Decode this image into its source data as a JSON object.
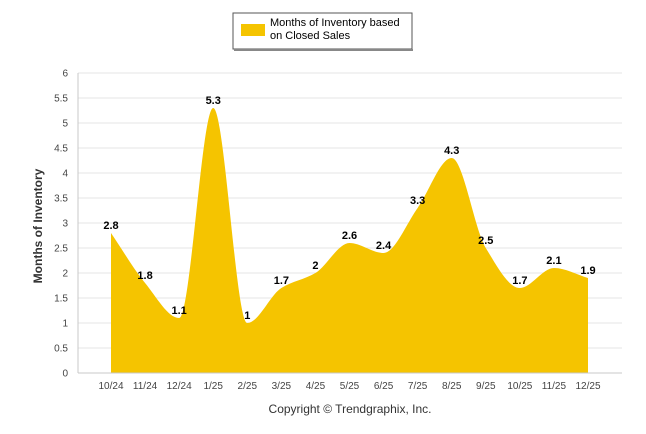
{
  "chart_data": {
    "type": "area",
    "categories": [
      "10/24",
      "11/24",
      "12/24",
      "1/25",
      "2/25",
      "3/25",
      "4/25",
      "5/25",
      "6/25",
      "7/25",
      "8/25",
      "9/25",
      "10/25",
      "11/25",
      "12/25"
    ],
    "series": [
      {
        "name": "Months of Inventory based on Closed Sales",
        "legend_lines": [
          "Months of Inventory based",
          "on Closed Sales"
        ],
        "values": [
          2.8,
          1.8,
          1.1,
          5.3,
          1,
          1.7,
          2,
          2.6,
          2.4,
          3.3,
          4.3,
          2.5,
          1.7,
          2.1,
          1.9
        ],
        "data_labels": [
          "2.8",
          "1.8",
          "1.1",
          "5.3",
          "1",
          "1.7",
          "2",
          "2.6",
          "2.4",
          "3.3",
          "4.3",
          "2.5",
          "1.7",
          "2.1",
          "1.9"
        ],
        "color": "#F5C400"
      }
    ],
    "ylabel": "Months of Inventory",
    "xlabel": "",
    "ylim": [
      0,
      6
    ],
    "yticks": [
      "0",
      "0.5",
      "1",
      "1.5",
      "2",
      "2.5",
      "3",
      "3.5",
      "4",
      "4.5",
      "5",
      "5.5",
      "6"
    ],
    "grid": true,
    "legend_position": "top-center",
    "smooth": true
  },
  "footer": {
    "copyright": "Copyright © Trendgraphix, Inc."
  },
  "colors": {
    "area": "#F5C400",
    "grid": "#e6e6e6",
    "axis": "#c8c8c8"
  }
}
